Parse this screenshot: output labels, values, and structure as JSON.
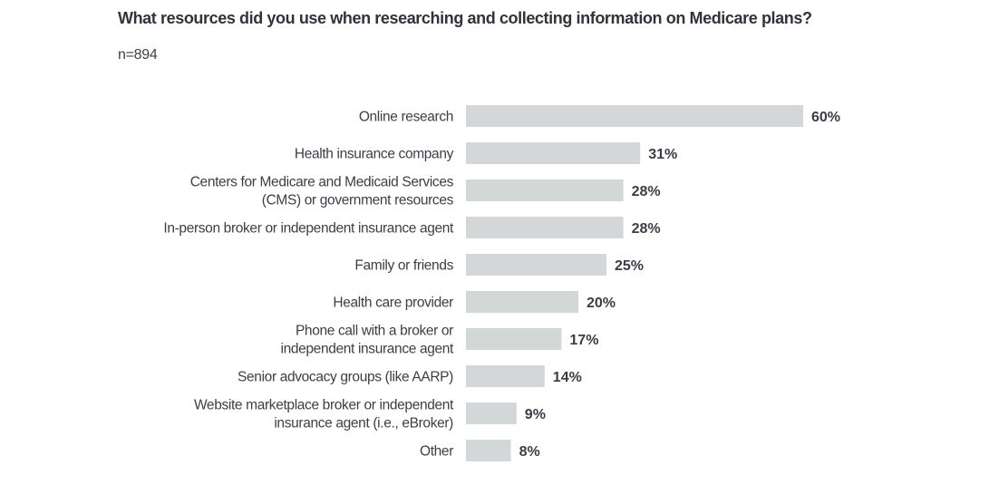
{
  "chart_data": {
    "type": "bar",
    "orientation": "horizontal",
    "title": "What resources did you use when researching and collecting information on Medicare plans?",
    "subtitle": "n=894",
    "categories": [
      [
        "Online research"
      ],
      [
        "Health insurance company"
      ],
      [
        "Centers for Medicare and Medicaid Services",
        "(CMS) or government resources"
      ],
      [
        "In-person broker or independent insurance agent"
      ],
      [
        "Family or friends"
      ],
      [
        "Health care provider"
      ],
      [
        "Phone call with a broker or",
        "independent insurance agent"
      ],
      [
        "Senior advocacy groups (like AARP)"
      ],
      [
        "Website marketplace broker or independent",
        "insurance agent (i.e., eBroker)"
      ],
      [
        "Other"
      ]
    ],
    "values": [
      60,
      31,
      28,
      28,
      25,
      20,
      17,
      14,
      9,
      8
    ],
    "value_labels": [
      "60%",
      "31%",
      "28%",
      "28%",
      "25%",
      "20%",
      "17%",
      "14%",
      "9%",
      "8%"
    ],
    "unit": "%",
    "xlim": [
      0,
      60
    ],
    "grid": false,
    "bar_color": "#d4d7d8"
  }
}
